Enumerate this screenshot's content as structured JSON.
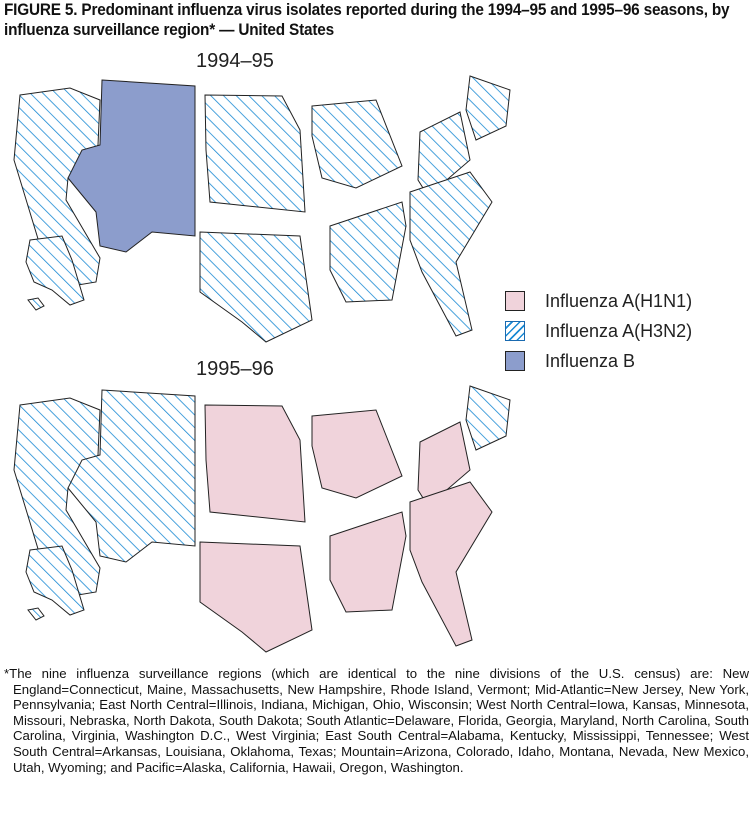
{
  "title": "FIGURE 5. Predominant influenza virus isolates reported during the 1994–95 and 1995–96 seasons, by influenza surveillance region* — United States",
  "maps": [
    {
      "season": "1994–95",
      "regions": {
        "pacific": "H3N2",
        "mountain": "B",
        "west_north_central": "H3N2",
        "east_north_central": "H3N2",
        "middle_atlantic": "H3N2",
        "new_england": "H3N2",
        "south_atlantic": "H3N2",
        "east_south_central": "H3N2",
        "west_south_central": "H3N2"
      }
    },
    {
      "season": "1995–96",
      "regions": {
        "pacific": "H3N2",
        "mountain": "H3N2",
        "west_north_central": "H1N1",
        "east_north_central": "H1N1",
        "middle_atlantic": "H1N1",
        "new_england": "H3N2",
        "south_atlantic": "H1N1",
        "east_south_central": "H1N1",
        "west_south_central": "H1N1"
      }
    }
  ],
  "legend": [
    {
      "key": "H1N1",
      "label": "Influenza A(H1N1)",
      "color": "#f0d3db",
      "fill": "solid"
    },
    {
      "key": "H3N2",
      "label": "Influenza A(H3N2)",
      "color": "#1a8ad4",
      "fill": "hatched"
    },
    {
      "key": "B",
      "label": "Influenza B",
      "color": "#8c9dcc",
      "fill": "solid"
    }
  ],
  "footnote": "*The nine influenza surveillance regions (which are identical to the nine divisions of the U.S. census) are: New England=Connecticut, Maine, Massachusetts, New Hampshire, Rhode Island, Vermont; Mid-Atlantic=New Jersey, New York, Pennsylvania; East North Central=Illinois, Indiana, Michigan, Ohio, Wisconsin; West North Central=Iowa, Kansas, Minnesota, Missouri, Nebraska, North Dakota, South Dakota; South Atlantic=Delaware, Florida, Georgia, Maryland, North Carolina, South Carolina, Virginia, Washington D.C., West Virginia; East South Central=Alabama, Kentucky, Mississippi, Tennessee; West South Central=Arkansas, Louisiana, Oklahoma, Texas; Mountain=Arizona, Colorado, Idaho, Montana, Nevada, New Mexico, Utah, Wyoming; and Pacific=Alaska, California, Hawaii, Oregon, Washington."
}
